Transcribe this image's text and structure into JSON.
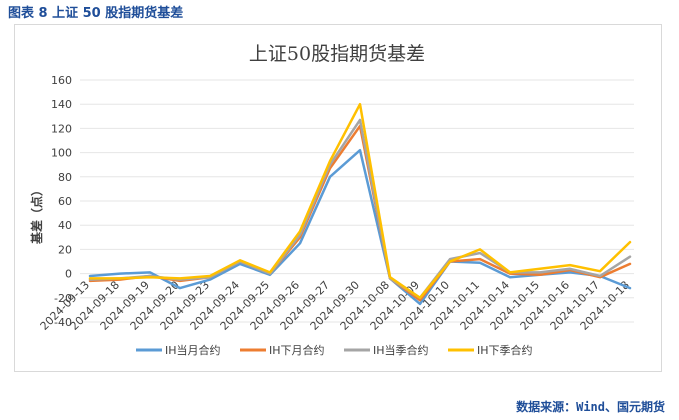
{
  "figure_caption": "图表 8  上证 50 股指期货基差",
  "source_note": "数据来源：Wind、国元期货",
  "chart_data": {
    "type": "line",
    "title": "上证50股指期货基差",
    "ylabel": "基差（点）",
    "xlabel": "",
    "ylim": [
      -40,
      160
    ],
    "yticks": [
      -40,
      -20,
      0,
      20,
      40,
      60,
      80,
      100,
      120,
      140,
      160
    ],
    "yticks_labels": [
      "-40",
      "-20",
      "0",
      "20",
      "40",
      "60",
      "80",
      "100",
      "120",
      "140",
      "160"
    ],
    "categories": [
      "2024-09-13",
      "2024-09-18",
      "2024-09-19",
      "2024-09-20",
      "2024-09-23",
      "2024-09-24",
      "2024-09-25",
      "2024-09-26",
      "2024-09-27",
      "2024-09-30",
      "2024-10-08",
      "2024-10-09",
      "2024-10-10",
      "2024-10-11",
      "2024-10-14",
      "2024-10-15",
      "2024-10-16",
      "2024-10-17",
      "2024-10-18"
    ],
    "legend_position": "bottom",
    "grid": true,
    "series": [
      {
        "name": "IH当月合约",
        "color": "#5b9bd5",
        "values": [
          -2,
          0,
          1,
          -12,
          -5,
          8,
          -1,
          25,
          80,
          102,
          -4,
          -25,
          10,
          9,
          -3,
          -1,
          1,
          -2,
          -12
        ]
      },
      {
        "name": "IH下月合约",
        "color": "#ed7d31",
        "values": [
          -6,
          -5,
          -2,
          -6,
          -3,
          10,
          0,
          30,
          87,
          122,
          -4,
          -22,
          10,
          12,
          0,
          -1,
          3,
          -3,
          8
        ]
      },
      {
        "name": "IH当季合约",
        "color": "#a5a5a5",
        "values": [
          -5,
          -4,
          -2,
          -5,
          -3,
          10,
          0,
          32,
          90,
          127,
          -4,
          -20,
          12,
          17,
          1,
          1,
          4,
          -2,
          14
        ]
      },
      {
        "name": "IH下季合约",
        "color": "#ffc000",
        "values": [
          -4,
          -4,
          -3,
          -4,
          -2,
          11,
          1,
          35,
          93,
          140,
          -3,
          -20,
          10,
          20,
          1,
          4,
          7,
          2,
          26
        ]
      }
    ]
  }
}
